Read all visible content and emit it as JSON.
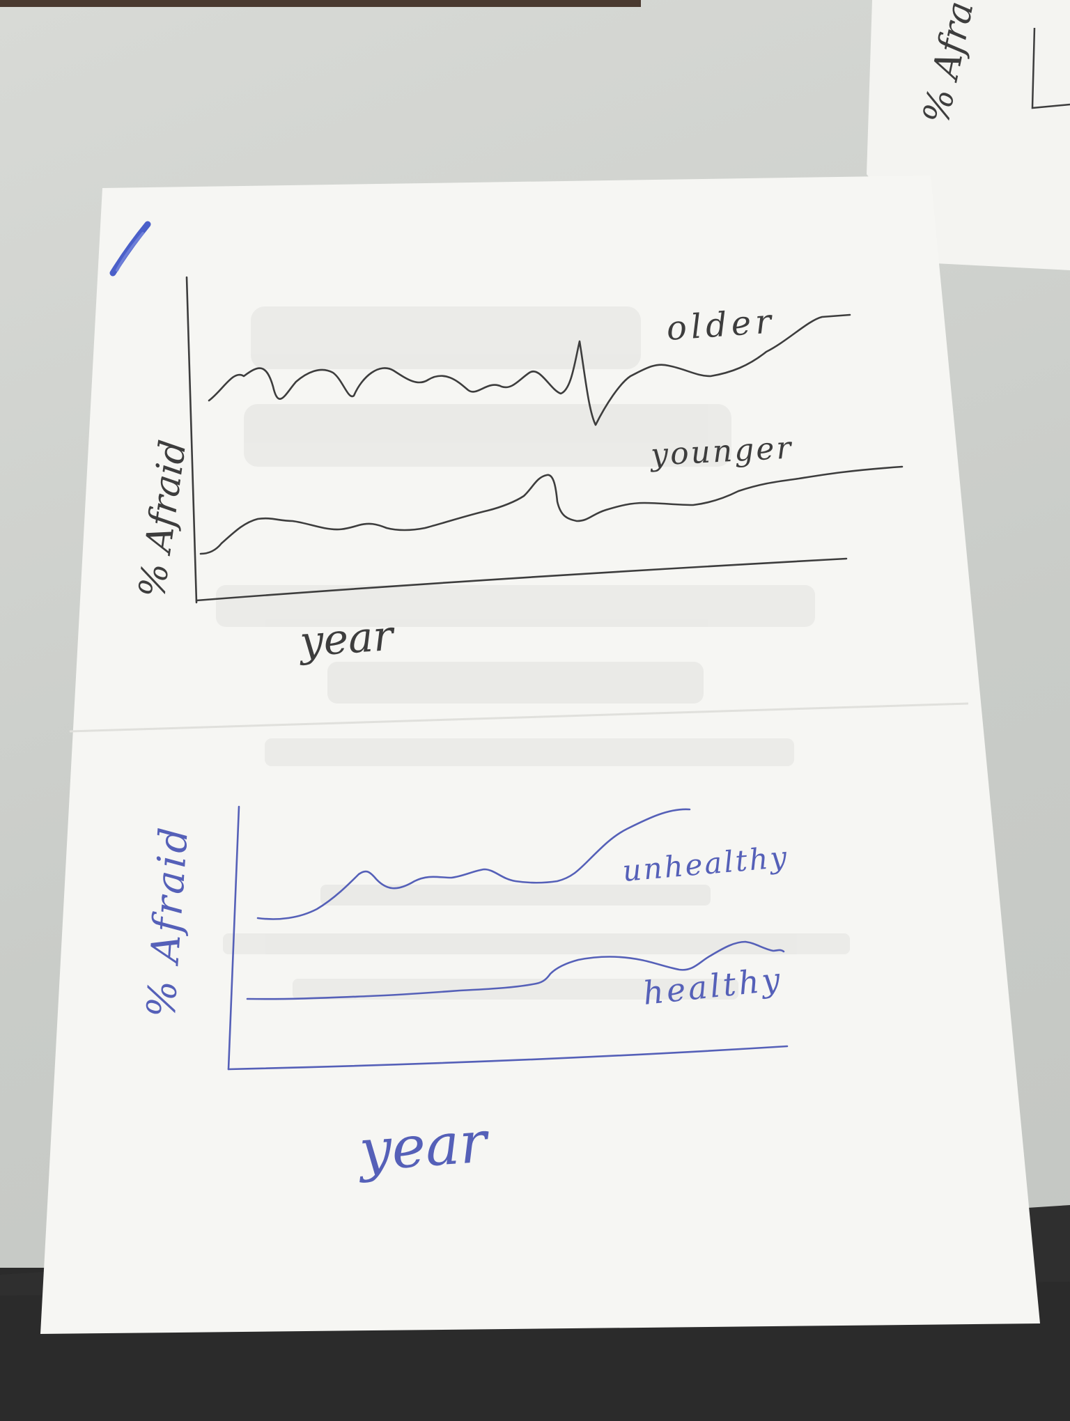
{
  "top_chart": {
    "ylabel": "% Afraid",
    "xlabel": "year",
    "series_labels": [
      "older",
      "younger"
    ],
    "ink": "#3d3d3d"
  },
  "bottom_chart": {
    "ylabel": "% Afraid",
    "xlabel": "year",
    "series_labels": [
      "unhealthy",
      "healthy"
    ],
    "ink": "#5560b8"
  },
  "corner_sheet": {
    "partial_label": "% Afra"
  },
  "colors": {
    "paper": "#f6f6f3",
    "tabletop": "#cfd1cd",
    "dark_edge": "#2a2a2a",
    "marker": "#4a5fc9"
  }
}
